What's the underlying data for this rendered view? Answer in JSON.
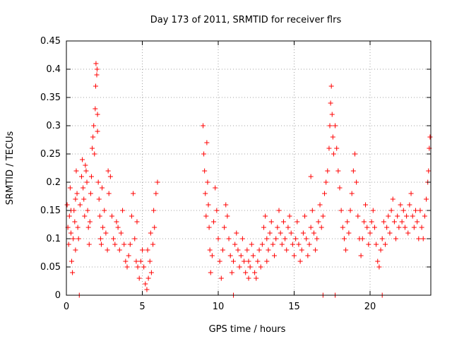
{
  "chart_data": {
    "type": "scatter",
    "title": "Day 173 of 2011, SRMTID for receiver flrs",
    "xlabel": "GPS time / hours",
    "ylabel": "SRMTID / TECUs",
    "xlim": [
      0,
      24
    ],
    "ylim": [
      0,
      0.45
    ],
    "x_ticks": [
      0,
      5,
      10,
      15,
      20
    ],
    "x_tick_labels": [
      "0",
      "5",
      "10",
      "15",
      "20"
    ],
    "y_ticks": [
      0,
      0.05,
      0.1,
      0.15,
      0.2,
      0.25,
      0.3,
      0.35,
      0.4,
      0.45
    ],
    "y_tick_labels": [
      "0",
      "0.05",
      "0.1",
      "0.15",
      "0.2",
      "0.25",
      "0.3",
      "0.35",
      "0.4",
      "0.45"
    ],
    "grid": true,
    "marker": "+",
    "color": "#ff0000",
    "series": [
      {
        "name": "SRMTID",
        "points": [
          [
            0.05,
            0.16
          ],
          [
            0.1,
            0.12
          ],
          [
            0.15,
            0.09
          ],
          [
            0.2,
            0.14
          ],
          [
            0.25,
            0.19
          ],
          [
            0.3,
            0.11
          ],
          [
            0.35,
            0.06
          ],
          [
            0.4,
            0.04
          ],
          [
            0.45,
            0.1
          ],
          [
            0.5,
            0.15
          ],
          [
            0.55,
            0.13
          ],
          [
            0.6,
            0.08
          ],
          [
            0.65,
            0.22
          ],
          [
            0.7,
            0.18
          ],
          [
            0.75,
            0.12
          ],
          [
            0.8,
            0.1
          ],
          [
            0.9,
            0.16
          ],
          [
            1.0,
            0.21
          ],
          [
            1.05,
            0.24
          ],
          [
            1.1,
            0.19
          ],
          [
            1.15,
            0.17
          ],
          [
            1.2,
            0.14
          ],
          [
            1.3,
            0.22
          ],
          [
            1.35,
            0.2
          ],
          [
            1.4,
            0.15
          ],
          [
            1.45,
            0.12
          ],
          [
            1.5,
            0.09
          ],
          [
            1.55,
            0.13
          ],
          [
            1.6,
            0.18
          ],
          [
            1.65,
            0.21
          ],
          [
            1.7,
            0.26
          ],
          [
            1.75,
            0.28
          ],
          [
            1.8,
            0.3
          ],
          [
            1.85,
            0.25
          ],
          [
            1.9,
            0.33
          ],
          [
            1.93,
            0.37
          ],
          [
            1.95,
            0.41
          ],
          [
            2.0,
            0.39
          ],
          [
            2.02,
            0.4
          ],
          [
            2.05,
            0.32
          ],
          [
            2.1,
            0.2
          ],
          [
            2.15,
            0.17
          ],
          [
            2.2,
            0.14
          ],
          [
            2.25,
            0.1
          ],
          [
            2.3,
            0.09
          ],
          [
            2.4,
            0.12
          ],
          [
            2.5,
            0.15
          ],
          [
            2.6,
            0.11
          ],
          [
            2.7,
            0.08
          ],
          [
            2.8,
            0.18
          ],
          [
            2.9,
            0.21
          ],
          [
            3.0,
            0.14
          ],
          [
            3.1,
            0.1
          ],
          [
            3.2,
            0.09
          ],
          [
            3.3,
            0.13
          ],
          [
            3.4,
            0.12
          ],
          [
            3.5,
            0.08
          ],
          [
            3.6,
            0.11
          ],
          [
            3.7,
            0.15
          ],
          [
            3.8,
            0.09
          ],
          [
            3.9,
            0.06
          ],
          [
            4.0,
            0.05
          ],
          [
            4.1,
            0.07
          ],
          [
            4.2,
            0.09
          ],
          [
            4.3,
            0.14
          ],
          [
            4.4,
            0.18
          ],
          [
            4.5,
            0.1
          ],
          [
            4.6,
            0.06
          ],
          [
            4.7,
            0.05
          ],
          [
            4.8,
            0.03
          ],
          [
            4.9,
            0.06
          ],
          [
            5.0,
            0.08
          ],
          [
            5.1,
            0.05
          ],
          [
            5.2,
            0.02
          ],
          [
            5.3,
            0.01
          ],
          [
            5.4,
            0.03
          ],
          [
            5.5,
            0.06
          ],
          [
            5.6,
            0.04
          ],
          [
            5.7,
            0.09
          ],
          [
            5.8,
            0.12
          ],
          [
            5.9,
            0.18
          ],
          [
            6.0,
            0.2
          ],
          [
            5.75,
            0.15
          ],
          [
            5.55,
            0.11
          ],
          [
            5.35,
            0.08
          ],
          [
            0.3,
            0.15
          ],
          [
            0.6,
            0.17
          ],
          [
            1.25,
            0.23
          ],
          [
            2.35,
            0.19
          ],
          [
            2.75,
            0.22
          ],
          [
            9.0,
            0.3
          ],
          [
            9.05,
            0.25
          ],
          [
            9.1,
            0.22
          ],
          [
            9.15,
            0.18
          ],
          [
            9.2,
            0.14
          ],
          [
            9.25,
            0.27
          ],
          [
            9.3,
            0.2
          ],
          [
            9.35,
            0.16
          ],
          [
            9.4,
            0.12
          ],
          [
            9.45,
            0.08
          ],
          [
            9.5,
            0.04
          ],
          [
            9.6,
            0.07
          ],
          [
            9.7,
            0.13
          ],
          [
            9.8,
            0.19
          ],
          [
            9.9,
            0.15
          ],
          [
            10.0,
            0.1
          ],
          [
            10.1,
            0.06
          ],
          [
            10.2,
            0.03
          ],
          [
            10.3,
            0.08
          ],
          [
            10.4,
            0.12
          ],
          [
            10.5,
            0.16
          ],
          [
            10.6,
            0.14
          ],
          [
            10.7,
            0.1
          ],
          [
            10.8,
            0.07
          ],
          [
            10.9,
            0.04
          ],
          [
            11.0,
            0.06
          ],
          [
            11.1,
            0.09
          ],
          [
            11.2,
            0.11
          ],
          [
            11.3,
            0.08
          ],
          [
            11.4,
            0.05
          ],
          [
            11.5,
            0.07
          ],
          [
            11.6,
            0.1
          ],
          [
            11.7,
            0.06
          ],
          [
            11.8,
            0.04
          ],
          [
            11.9,
            0.08
          ],
          [
            12.0,
            0.06
          ],
          [
            12.1,
            0.05
          ],
          [
            12.2,
            0.09
          ],
          [
            12.3,
            0.07
          ],
          [
            12.4,
            0.04
          ],
          [
            12.5,
            0.03
          ],
          [
            12.6,
            0.06
          ],
          [
            12.7,
            0.08
          ],
          [
            12.8,
            0.05
          ],
          [
            12.9,
            0.09
          ],
          [
            13.0,
            0.12
          ],
          [
            13.1,
            0.14
          ],
          [
            13.2,
            0.1
          ],
          [
            13.3,
            0.08
          ],
          [
            13.4,
            0.11
          ],
          [
            13.5,
            0.13
          ],
          [
            13.6,
            0.09
          ],
          [
            13.7,
            0.07
          ],
          [
            13.8,
            0.1
          ],
          [
            13.9,
            0.12
          ],
          [
            14.0,
            0.15
          ],
          [
            14.1,
            0.11
          ],
          [
            14.2,
            0.09
          ],
          [
            14.3,
            0.13
          ],
          [
            14.4,
            0.1
          ],
          [
            14.5,
            0.08
          ],
          [
            14.6,
            0.12
          ],
          [
            14.7,
            0.14
          ],
          [
            14.8,
            0.11
          ],
          [
            14.9,
            0.09
          ],
          [
            15.0,
            0.07
          ],
          [
            15.1,
            0.1
          ],
          [
            15.2,
            0.13
          ],
          [
            15.3,
            0.09
          ],
          [
            15.4,
            0.06
          ],
          [
            15.5,
            0.08
          ],
          [
            15.6,
            0.11
          ],
          [
            15.7,
            0.14
          ],
          [
            15.8,
            0.1
          ],
          [
            15.9,
            0.07
          ],
          [
            16.0,
            0.09
          ],
          [
            16.1,
            0.12
          ],
          [
            16.2,
            0.15
          ],
          [
            16.3,
            0.11
          ],
          [
            16.4,
            0.08
          ],
          [
            16.5,
            0.1
          ],
          [
            16.6,
            0.13
          ],
          [
            16.7,
            0.16
          ],
          [
            16.8,
            0.12
          ],
          [
            16.9,
            0.14
          ],
          [
            17.0,
            0.18
          ],
          [
            17.1,
            0.2
          ],
          [
            17.2,
            0.22
          ],
          [
            17.3,
            0.26
          ],
          [
            17.35,
            0.3
          ],
          [
            17.4,
            0.34
          ],
          [
            17.45,
            0.37
          ],
          [
            17.5,
            0.32
          ],
          [
            17.55,
            0.28
          ],
          [
            17.6,
            0.25
          ],
          [
            17.7,
            0.3
          ],
          [
            17.8,
            0.26
          ],
          [
            17.9,
            0.22
          ],
          [
            18.0,
            0.19
          ],
          [
            18.1,
            0.15
          ],
          [
            18.2,
            0.12
          ],
          [
            18.3,
            0.1
          ],
          [
            18.4,
            0.08
          ],
          [
            18.5,
            0.13
          ],
          [
            18.6,
            0.11
          ],
          [
            18.7,
            0.15
          ],
          [
            18.8,
            0.18
          ],
          [
            18.9,
            0.22
          ],
          [
            19.0,
            0.25
          ],
          [
            19.1,
            0.2
          ],
          [
            19.2,
            0.14
          ],
          [
            19.3,
            0.1
          ],
          [
            19.4,
            0.07
          ],
          [
            19.5,
            0.1
          ],
          [
            19.6,
            0.13
          ],
          [
            19.7,
            0.16
          ],
          [
            19.8,
            0.12
          ],
          [
            19.9,
            0.09
          ],
          [
            20.0,
            0.11
          ],
          [
            20.1,
            0.13
          ],
          [
            20.2,
            0.15
          ],
          [
            20.3,
            0.12
          ],
          [
            20.4,
            0.09
          ],
          [
            20.5,
            0.06
          ],
          [
            20.6,
            0.05
          ],
          [
            20.7,
            0.08
          ],
          [
            20.8,
            0.1
          ],
          [
            20.9,
            0.13
          ],
          [
            21.0,
            0.09
          ],
          [
            21.1,
            0.12
          ],
          [
            21.2,
            0.14
          ],
          [
            21.3,
            0.11
          ],
          [
            21.4,
            0.15
          ],
          [
            21.5,
            0.17
          ],
          [
            21.6,
            0.13
          ],
          [
            21.7,
            0.1
          ],
          [
            21.8,
            0.14
          ],
          [
            21.9,
            0.12
          ],
          [
            22.0,
            0.16
          ],
          [
            22.1,
            0.13
          ],
          [
            22.2,
            0.15
          ],
          [
            22.3,
            0.12
          ],
          [
            22.4,
            0.14
          ],
          [
            22.5,
            0.11
          ],
          [
            22.6,
            0.16
          ],
          [
            22.7,
            0.18
          ],
          [
            22.8,
            0.14
          ],
          [
            22.9,
            0.12
          ],
          [
            23.0,
            0.15
          ],
          [
            23.1,
            0.13
          ],
          [
            23.2,
            0.1
          ],
          [
            23.3,
            0.15
          ],
          [
            23.4,
            0.12
          ],
          [
            23.5,
            0.1
          ],
          [
            23.6,
            0.14
          ],
          [
            23.7,
            0.17
          ],
          [
            23.8,
            0.2
          ],
          [
            23.9,
            0.26
          ],
          [
            23.95,
            0.28
          ],
          [
            23.85,
            0.22
          ],
          [
            0.85,
            0.0
          ],
          [
            11.0,
            0.0
          ],
          [
            16.9,
            0.0
          ],
          [
            17.7,
            0.0
          ],
          [
            20.8,
            0.0
          ],
          [
            16.1,
            0.21
          ],
          [
            13.2,
            0.06
          ],
          [
            12.0,
            0.03
          ],
          [
            4.65,
            0.13
          ],
          [
            2.05,
            0.29
          ]
        ]
      }
    ]
  }
}
